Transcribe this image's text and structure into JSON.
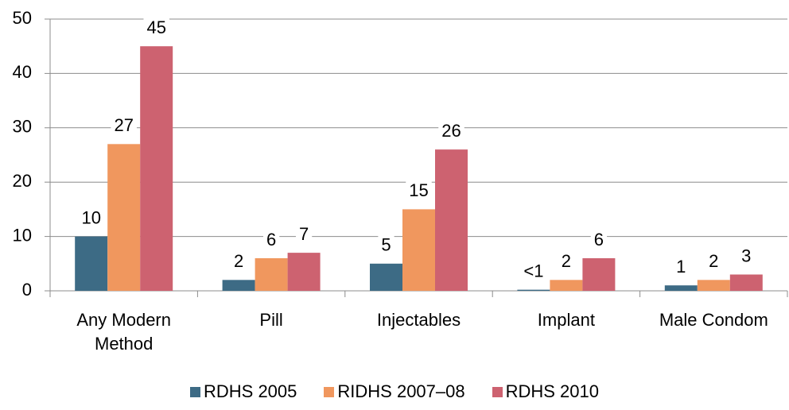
{
  "chart_data": {
    "type": "bar",
    "categories": [
      "Any Modern Method",
      "Pill",
      "Injectables",
      "Implant",
      "Male Condom"
    ],
    "series": [
      {
        "name": "RDHS 2005",
        "color": "#3d6b85",
        "values": [
          10,
          2,
          5,
          0.2,
          1
        ],
        "value_labels": [
          "10",
          "2",
          "5",
          "<1",
          "1"
        ]
      },
      {
        "name": "RIDHS 2007–08",
        "color": "#f0975e",
        "values": [
          27,
          6,
          15,
          2,
          2
        ]
      },
      {
        "name": "RDHS 2010",
        "color": "#cd6270",
        "values": [
          45,
          7,
          26,
          6,
          3
        ]
      }
    ],
    "ylim": [
      0,
      50
    ],
    "yticks": [
      0,
      10,
      20,
      30,
      40,
      50
    ],
    "grid": true,
    "legend": "bottom"
  }
}
